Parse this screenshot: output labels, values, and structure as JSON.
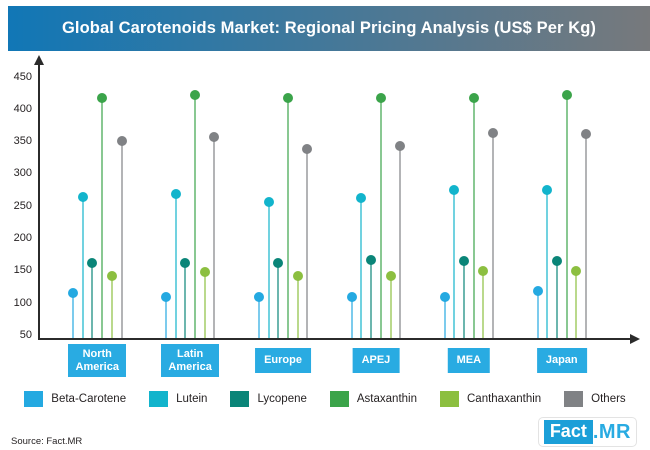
{
  "title": "Global Carotenoids Market: Regional Pricing Analysis (US$ Per Kg)",
  "source": "Source: Fact.MR",
  "logo": {
    "fact": "Fact",
    "mr": ".MR"
  },
  "colors": {
    "banner_left": "#1177B6",
    "banner_right": "#77797C",
    "region_box": "#29ABE2",
    "axis": "#2b2b2b",
    "logo_box_blue": "#1B9FD8",
    "logo_text_blue": "#29ABE2"
  },
  "chart_data": {
    "type": "bar",
    "style": "lollipop",
    "title": "Global Carotenoids Market: Regional Pricing Analysis (US$ Per Kg)",
    "xlabel": "",
    "ylabel": "",
    "ylim": [
      50,
      450
    ],
    "yticks": [
      50,
      100,
      150,
      200,
      250,
      300,
      350,
      400,
      450
    ],
    "grid": false,
    "legend_position": "bottom",
    "categories": [
      "North America",
      "Latin America",
      "Europe",
      "APEJ",
      "MEA",
      "Japan"
    ],
    "series": [
      {
        "name": "Beta-Carotene",
        "color": "#24A9E1",
        "values": [
          116,
          109,
          109,
          109,
          109,
          119
        ]
      },
      {
        "name": "Lutein",
        "color": "#12B4CC",
        "values": [
          265,
          269,
          257,
          262,
          275,
          275
        ]
      },
      {
        "name": "Lycopene",
        "color": "#0A8578",
        "values": [
          162,
          162,
          162,
          166,
          165,
          165
        ]
      },
      {
        "name": "Astaxanthin",
        "color": "#3BA44A",
        "values": [
          418,
          422,
          418,
          418,
          418,
          422
        ]
      },
      {
        "name": "Canthaxanthin",
        "color": "#8CBF40",
        "values": [
          142,
          148,
          142,
          142,
          149,
          149
        ]
      },
      {
        "name": "Others",
        "color": "#808285",
        "values": [
          351,
          357,
          339,
          344,
          364,
          362
        ]
      }
    ]
  }
}
